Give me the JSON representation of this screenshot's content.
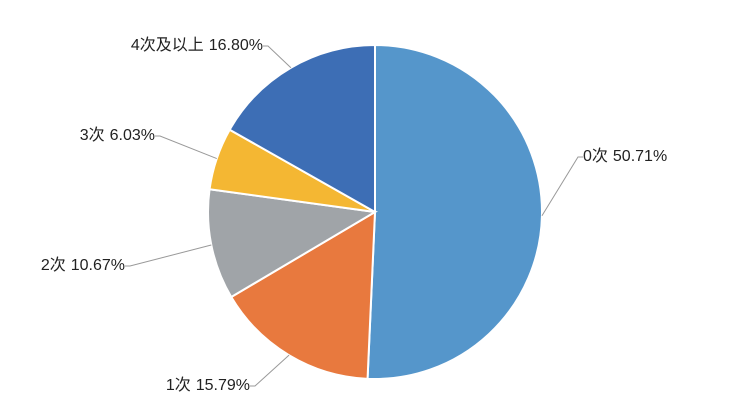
{
  "chart_data": {
    "type": "pie",
    "categories": [
      "0次",
      "1次",
      "2次",
      "3次",
      "4次及以上"
    ],
    "values": [
      50.71,
      15.79,
      10.67,
      6.03,
      16.8
    ],
    "value_labels": [
      "50.71%",
      "15.79%",
      "10.67%",
      "6.03%",
      "16.80%"
    ],
    "colors": [
      "#5596cb",
      "#e8793e",
      "#a0a4a8",
      "#f4b733",
      "#3d6eb5"
    ]
  }
}
